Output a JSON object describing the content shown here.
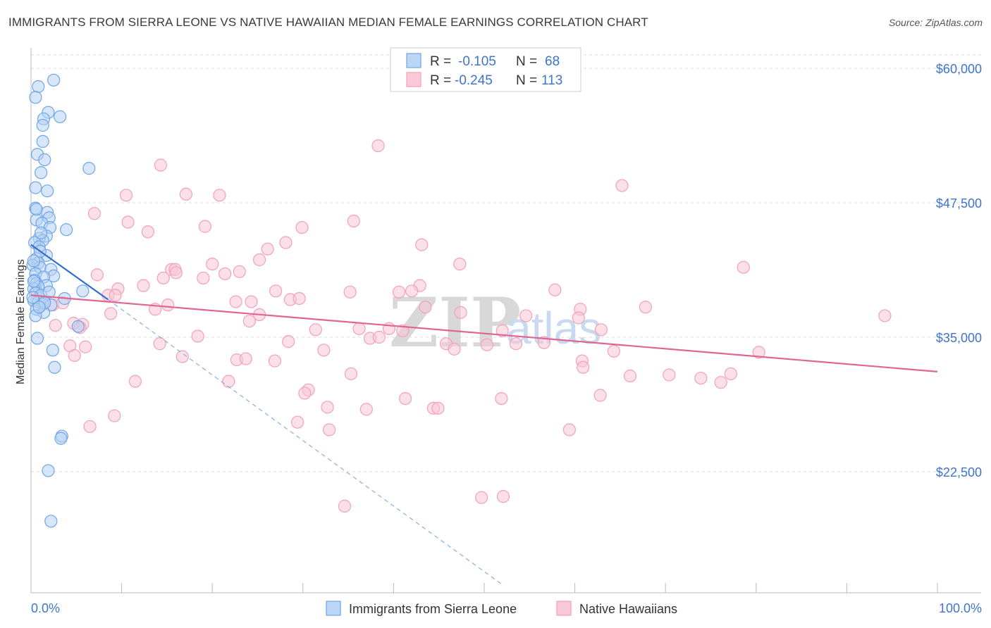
{
  "header": {
    "title": "IMMIGRANTS FROM SIERRA LEONE VS NATIVE HAWAIIAN MEDIAN FEMALE EARNINGS CORRELATION CHART",
    "source": "Source: ZipAtlas.com"
  },
  "watermark": {
    "zip": "ZIP",
    "atlas": "atlas"
  },
  "legend": {
    "r_label": "R =",
    "n_label": "N =",
    "entries": [
      {
        "r": "-0.105",
        "n": "68"
      },
      {
        "r": "-0.245",
        "n": "113"
      }
    ]
  },
  "colors": {
    "blue": "#6fa6e8",
    "blue_line": "#2f6fce",
    "pink": "#f2a0bb",
    "pink_line": "#e06595",
    "axis_label": "#3f74c9",
    "grid": "#dddddd"
  },
  "chart_data": {
    "type": "scatter",
    "title": "IMMIGRANTS FROM SIERRA LEONE VS NATIVE HAWAIIAN MEDIAN FEMALE EARNINGS CORRELATION CHART",
    "xlabel": "",
    "ylabel": "Median Female Earnings",
    "xlim": [
      0,
      100
    ],
    "ylim": [
      12000,
      62000
    ],
    "x_tick_labels": [
      "0.0%",
      "100.0%"
    ],
    "y_ticks": [
      22500,
      35000,
      47500,
      60000
    ],
    "y_tick_labels": [
      "$22,500",
      "$35,000",
      "$47,500",
      "$60,000"
    ],
    "series": [
      {
        "name": "Immigrants from Sierra Leone",
        "color": "#6fa6e8",
        "r": -0.105,
        "n": 68,
        "trend": {
          "x": [
            0,
            8.5
          ],
          "y": [
            43600,
            38500
          ]
        },
        "trend_ext": {
          "x": [
            8.5,
            52.0
          ],
          "y": [
            38500,
            12000
          ]
        },
        "points": [
          [
            2.5,
            58900
          ],
          [
            0.8,
            58300
          ],
          [
            0.5,
            57300
          ],
          [
            1.9,
            55900
          ],
          [
            3.2,
            55500
          ],
          [
            1.4,
            55300
          ],
          [
            1.3,
            54700
          ],
          [
            1.3,
            53200
          ],
          [
            0.7,
            52000
          ],
          [
            1.5,
            51500
          ],
          [
            6.4,
            50700
          ],
          [
            1.1,
            50300
          ],
          [
            0.5,
            48900
          ],
          [
            1.8,
            48600
          ],
          [
            0.5,
            47000
          ],
          [
            1.8,
            46600
          ],
          [
            2.0,
            46100
          ],
          [
            0.6,
            45900
          ],
          [
            1.2,
            45600
          ],
          [
            2.1,
            45200
          ],
          [
            3.9,
            45000
          ],
          [
            1.7,
            44400
          ],
          [
            0.9,
            44200
          ],
          [
            1.3,
            44000
          ],
          [
            0.4,
            43800
          ],
          [
            0.9,
            43400
          ],
          [
            1.7,
            42600
          ],
          [
            0.6,
            42300
          ],
          [
            0.8,
            41900
          ],
          [
            0.2,
            41700
          ],
          [
            1.0,
            41500
          ],
          [
            2.2,
            41300
          ],
          [
            0.5,
            40900
          ],
          [
            2.5,
            40700
          ],
          [
            1.4,
            40600
          ],
          [
            0.4,
            40300
          ],
          [
            0.6,
            40000
          ],
          [
            1.7,
            39800
          ],
          [
            0.8,
            39700
          ],
          [
            0.3,
            39500
          ],
          [
            5.7,
            39300
          ],
          [
            0.5,
            39100
          ],
          [
            1.1,
            38900
          ],
          [
            3.7,
            38600
          ],
          [
            0.3,
            38400
          ],
          [
            0.8,
            38300
          ],
          [
            1.3,
            38100
          ],
          [
            2.2,
            38000
          ],
          [
            0.6,
            37600
          ],
          [
            1.4,
            37300
          ],
          [
            0.5,
            37000
          ],
          [
            5.2,
            36000
          ],
          [
            0.7,
            34900
          ],
          [
            2.4,
            33800
          ],
          [
            2.6,
            32200
          ],
          [
            3.4,
            25800
          ],
          [
            3.3,
            25600
          ],
          [
            1.9,
            22600
          ],
          [
            2.2,
            17900
          ],
          [
            0.3,
            40200
          ],
          [
            1.0,
            43000
          ],
          [
            0.2,
            38700
          ],
          [
            1.5,
            38200
          ],
          [
            0.6,
            46900
          ],
          [
            1.1,
            44700
          ],
          [
            0.3,
            42100
          ],
          [
            2.0,
            39200
          ],
          [
            0.9,
            37800
          ]
        ]
      },
      {
        "name": "Native Hawaiians",
        "color": "#f2a0bb",
        "r": -0.245,
        "n": 113,
        "trend": {
          "x": [
            0,
            100
          ],
          "y": [
            38900,
            31800
          ]
        },
        "points": [
          [
            38.3,
            52800
          ],
          [
            14.3,
            51000
          ],
          [
            65.2,
            49100
          ],
          [
            10.5,
            48200
          ],
          [
            17.1,
            48300
          ],
          [
            20.8,
            48200
          ],
          [
            7.0,
            46500
          ],
          [
            10.7,
            45700
          ],
          [
            35.6,
            45800
          ],
          [
            19.2,
            45300
          ],
          [
            29.9,
            45200
          ],
          [
            12.9,
            44800
          ],
          [
            28.1,
            43800
          ],
          [
            43.1,
            43600
          ],
          [
            26.1,
            43200
          ],
          [
            25.2,
            42200
          ],
          [
            20.0,
            41800
          ],
          [
            47.3,
            41800
          ],
          [
            78.6,
            41500
          ],
          [
            15.5,
            41300
          ],
          [
            15.9,
            41300
          ],
          [
            16.0,
            41000
          ],
          [
            21.4,
            40900
          ],
          [
            23.0,
            41100
          ],
          [
            7.3,
            40800
          ],
          [
            14.6,
            40500
          ],
          [
            19.0,
            40500
          ],
          [
            12.4,
            39800
          ],
          [
            42.9,
            39800
          ],
          [
            9.6,
            39500
          ],
          [
            57.8,
            39400
          ],
          [
            27.0,
            39300
          ],
          [
            40.6,
            39200
          ],
          [
            35.2,
            39200
          ],
          [
            42.0,
            39300
          ],
          [
            8.5,
            38900
          ],
          [
            9.3,
            38900
          ],
          [
            0.8,
            38300
          ],
          [
            2.4,
            38000
          ],
          [
            22.6,
            38300
          ],
          [
            28.6,
            38500
          ],
          [
            24.3,
            38300
          ],
          [
            29.6,
            38600
          ],
          [
            13.7,
            37600
          ],
          [
            43.5,
            37800
          ],
          [
            60.6,
            37600
          ],
          [
            67.8,
            37800
          ],
          [
            94.2,
            37000
          ],
          [
            47.4,
            37300
          ],
          [
            54.6,
            37000
          ],
          [
            60.4,
            36800
          ],
          [
            25.2,
            37100
          ],
          [
            2.7,
            36100
          ],
          [
            4.7,
            36300
          ],
          [
            5.7,
            36200
          ],
          [
            24.1,
            36500
          ],
          [
            31.4,
            35700
          ],
          [
            36.2,
            35800
          ],
          [
            39.5,
            35800
          ],
          [
            41.0,
            35600
          ],
          [
            52.0,
            35600
          ],
          [
            62.9,
            35700
          ],
          [
            18.4,
            35100
          ],
          [
            37.4,
            34900
          ],
          [
            38.4,
            35000
          ],
          [
            45.8,
            34400
          ],
          [
            50.3,
            34300
          ],
          [
            53.5,
            34400
          ],
          [
            56.6,
            34500
          ],
          [
            14.2,
            34400
          ],
          [
            4.3,
            34200
          ],
          [
            6.0,
            34100
          ],
          [
            28.4,
            34600
          ],
          [
            32.3,
            33800
          ],
          [
            46.7,
            33900
          ],
          [
            64.3,
            33700
          ],
          [
            80.3,
            33600
          ],
          [
            4.8,
            33300
          ],
          [
            16.7,
            33200
          ],
          [
            22.7,
            32900
          ],
          [
            23.7,
            33000
          ],
          [
            26.9,
            32800
          ],
          [
            60.8,
            32800
          ],
          [
            11.5,
            30900
          ],
          [
            21.8,
            30900
          ],
          [
            35.3,
            31600
          ],
          [
            66.1,
            31400
          ],
          [
            70.4,
            31500
          ],
          [
            77.2,
            31600
          ],
          [
            60.9,
            32200
          ],
          [
            73.9,
            31200
          ],
          [
            76.1,
            30800
          ],
          [
            30.6,
            30100
          ],
          [
            30.2,
            29800
          ],
          [
            41.3,
            29300
          ],
          [
            51.9,
            29300
          ],
          [
            32.7,
            28500
          ],
          [
            37.0,
            28300
          ],
          [
            44.4,
            28400
          ],
          [
            44.9,
            28400
          ],
          [
            62.8,
            29600
          ],
          [
            9.2,
            27700
          ],
          [
            29.4,
            27100
          ],
          [
            6.5,
            26700
          ],
          [
            32.9,
            26400
          ],
          [
            59.4,
            26400
          ],
          [
            49.7,
            20100
          ],
          [
            52.1,
            20200
          ],
          [
            34.6,
            19300
          ],
          [
            3.5,
            38200
          ],
          [
            5.4,
            35900
          ],
          [
            8.8,
            37200
          ],
          [
            15.1,
            38000
          ]
        ]
      }
    ]
  }
}
